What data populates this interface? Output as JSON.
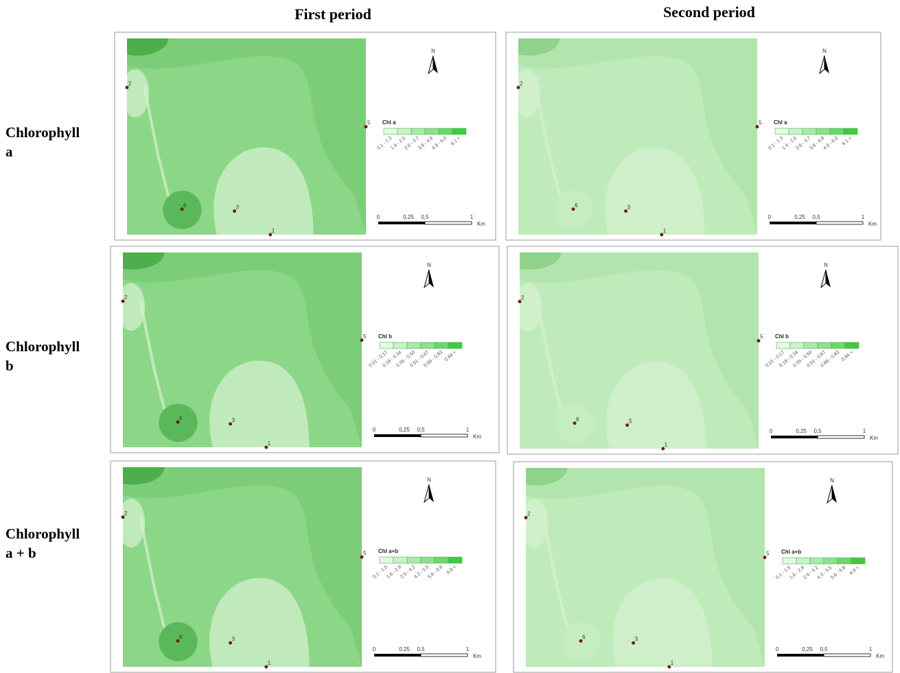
{
  "columns": [
    "First period",
    "Second period"
  ],
  "rows": [
    "Chlorophyll a",
    "Chlorophyll b",
    "Chlorophyll a + b"
  ],
  "panels": [
    {
      "north": "N",
      "legend_title": "Chl a",
      "legend_labels": [
        "0.1 - 1.3",
        "1.4 - 2.5",
        "2.6 - 3.7",
        "3.8 - 4.8",
        "4.9 - 6.0",
        "6.1 +"
      ],
      "scale_labels": [
        "0",
        "0,25",
        "0,5",
        "1",
        "Km"
      ],
      "points": [
        "2",
        "5",
        "6",
        "3",
        "1"
      ]
    },
    {
      "north": "N",
      "legend_title": "Chl a",
      "legend_labels": [
        "0.1 - 1.3",
        "1.4 - 2.5",
        "2.6 - 3.7",
        "3.8 - 4.8",
        "4.9 - 6.0",
        "6.1 +"
      ],
      "scale_labels": [
        "0",
        "0,25",
        "0,5",
        "1",
        "Km"
      ],
      "points": [
        "2",
        "5",
        "6",
        "3",
        "1"
      ]
    },
    {
      "north": "N",
      "legend_title": "Chl b",
      "legend_labels": [
        "0.01 - 0.17",
        "0.18 - 0.34",
        "0.35 - 0.50",
        "0.51 - 0.67",
        "0.68 - 0.83",
        "0.84 +"
      ],
      "scale_labels": [
        "0",
        "0,25",
        "0,5",
        "1",
        "Km"
      ],
      "points": [
        "2",
        "5",
        "6",
        "3",
        "1"
      ]
    },
    {
      "north": "N",
      "legend_title": "Chl b",
      "legend_labels": [
        "0.01 - 0.17",
        "0.18 - 0.34",
        "0.35 - 0.50",
        "0.51 - 0.67",
        "0.68 - 0.83",
        "0.84 +"
      ],
      "scale_labels": [
        "0",
        "0,25",
        "0,5",
        "1",
        "Km"
      ],
      "points": [
        "2",
        "5",
        "6",
        "3",
        "1"
      ]
    },
    {
      "north": "N",
      "legend_title": "Chl a+b",
      "legend_labels": [
        "0.1 - 1.5",
        "1.6 - 2.8",
        "2.9 - 4.2",
        "4.3 - 5.5",
        "5.6 - 6.8",
        "6.9 +"
      ],
      "scale_labels": [
        "0",
        "0.25",
        "0.5",
        "1",
        "Km"
      ],
      "points": [
        "2",
        "5",
        "6",
        "3",
        "1"
      ]
    },
    {
      "north": "N",
      "legend_title": "Chl a+b",
      "legend_labels": [
        "0.1 - 1.5",
        "1.6 - 2.8",
        "2.9 - 4.2",
        "4.3 - 5.5",
        "5.6 - 6.8",
        "6.9 +"
      ],
      "scale_labels": [
        "0",
        "0,25",
        "0,5",
        "1",
        "Km"
      ],
      "points": [
        "2",
        "5",
        "6",
        "3",
        "1"
      ]
    }
  ]
}
